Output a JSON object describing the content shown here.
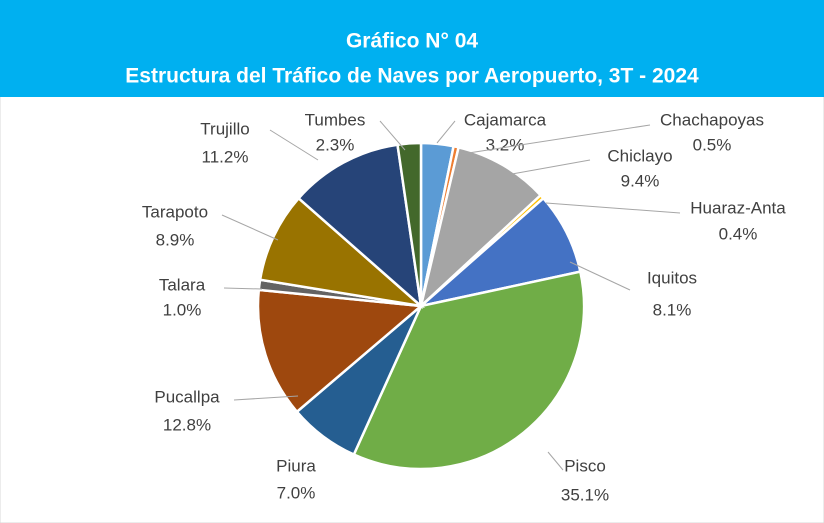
{
  "chart_data": {
    "type": "pie",
    "title": "Gráfico N° 04",
    "subtitle": "Estructura del Tráfico de Naves por Aeropuerto, 3T - 2024",
    "categories": [
      "Cajamarca",
      "Chachapoyas",
      "Chiclayo",
      "Huaraz-Anta",
      "Iquitos",
      "Pisco",
      "Piura",
      "Pucallpa",
      "Talara",
      "Tarapoto",
      "Trujillo",
      "Tumbes"
    ],
    "values": [
      3.2,
      0.5,
      9.4,
      0.4,
      8.1,
      35.1,
      7.0,
      12.8,
      1.0,
      8.9,
      11.2,
      2.3
    ],
    "value_labels": [
      "3.2%",
      "0.5%",
      "9.4%",
      "0.4%",
      "8.1%",
      "35.1%",
      "7.0%",
      "12.8%",
      "1.0%",
      "8.9%",
      "11.2%",
      "2.3%"
    ],
    "colors": [
      "#5b9bd5",
      "#ed7d31",
      "#a5a5a5",
      "#ffc000",
      "#4472c4",
      "#70ad47",
      "#255e91",
      "#9e480e",
      "#636363",
      "#997300",
      "#264478",
      "#43682b"
    ]
  }
}
